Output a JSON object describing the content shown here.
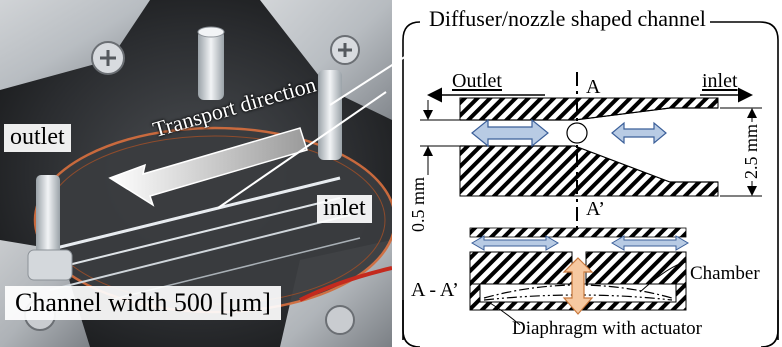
{
  "photo": {
    "outlet_label": "outlet",
    "inlet_label": "inlet",
    "transport_label": "Transport direction",
    "channel_width_label": "Channel width 500 [μm]"
  },
  "diagram": {
    "title": "Diffuser/nozzle shaped channel",
    "outlet_label": "Outlet",
    "inlet_label": "inlet",
    "section_top": "A",
    "section_bottom": "A’",
    "dim_left": "0.5 mm",
    "dim_right": "2.5 mm",
    "section_label": "A - A’",
    "chamber_label": "Chamber",
    "diaphragm_label": "Diaphragm with actuator"
  },
  "colors": {
    "arrow_fill": "#b8cbe4",
    "arrow_stroke": "#3b5f99",
    "actuator_fill": "#f6c8a0",
    "actuator_stroke": "#c8783c",
    "hatch": "#000000"
  }
}
